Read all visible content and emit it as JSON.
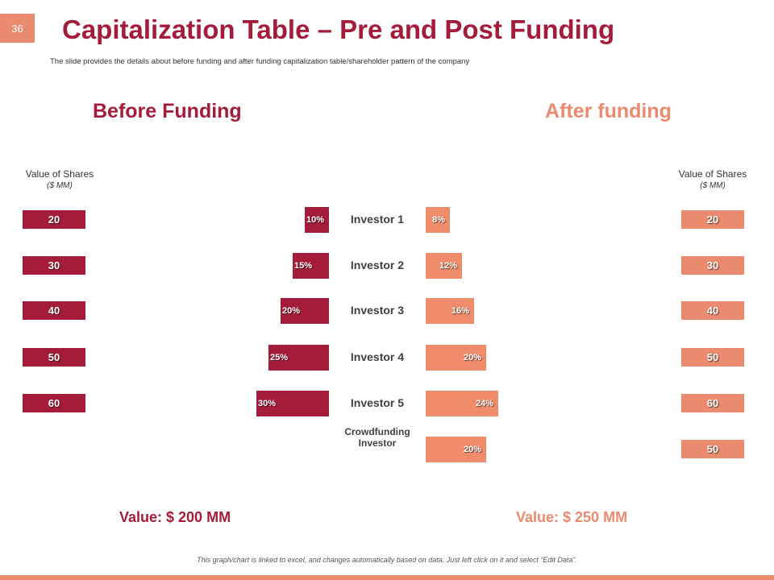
{
  "slide": {
    "number": "36",
    "title": "Capitalization Table – Pre and Post Funding",
    "subtitle": "The slide provides the details about before funding and after funding capitalization table/shareholder pattern of the company",
    "footer_note": "This graph/chart is linked to excel, and changes automatically based on data. Just left click on it and select “Edit Data”."
  },
  "chart_data": {
    "type": "bar",
    "categories": [
      "Investor 1",
      "Investor 2",
      "Investor 3",
      "Investor 4",
      "Investor 5",
      "Crowdfunding Investor"
    ],
    "before": {
      "title": "Before Funding",
      "value_header": "Value of Shares",
      "value_unit": "($ MM)",
      "shares_value": [
        20,
        30,
        40,
        50,
        60
      ],
      "percent_labels": [
        "10%",
        "15%",
        "20%",
        "25%",
        "30%"
      ],
      "percent": [
        10,
        15,
        20,
        25,
        30
      ],
      "total_label": "Value: $ 200 MM",
      "color": "#a51c3b"
    },
    "after": {
      "title": "After funding",
      "value_header": "Value of Shares",
      "value_unit": "($ MM)",
      "shares_value": [
        20,
        30,
        40,
        50,
        60,
        50
      ],
      "percent_labels": [
        "8%",
        "12%",
        "16%",
        "20%",
        "24%",
        "20%"
      ],
      "percent": [
        8,
        12,
        16,
        20,
        24,
        20
      ],
      "total_label": "Value: $ 250 MM",
      "color": "#ea8a6f"
    }
  }
}
